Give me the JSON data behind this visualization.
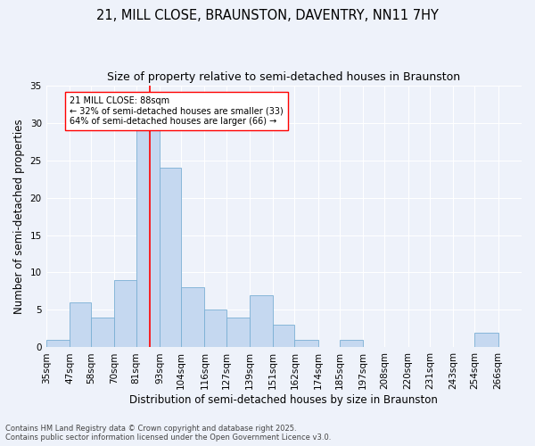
{
  "title1": "21, MILL CLOSE, BRAUNSTON, DAVENTRY, NN11 7HY",
  "title2": "Size of property relative to semi-detached houses in Braunston",
  "xlabel": "Distribution of semi-detached houses by size in Braunston",
  "ylabel": "Number of semi-detached properties",
  "bin_labels": [
    "35sqm",
    "47sqm",
    "58sqm",
    "70sqm",
    "81sqm",
    "93sqm",
    "104sqm",
    "116sqm",
    "127sqm",
    "139sqm",
    "151sqm",
    "162sqm",
    "174sqm",
    "185sqm",
    "197sqm",
    "208sqm",
    "220sqm",
    "231sqm",
    "243sqm",
    "254sqm",
    "266sqm"
  ],
  "bar_heights": [
    1,
    6,
    4,
    9,
    29,
    24,
    8,
    5,
    4,
    7,
    3,
    1,
    0,
    1,
    0,
    0,
    0,
    0,
    0,
    2,
    0
  ],
  "bar_color": "#c5d8f0",
  "bar_edge_color": "#7aafd4",
  "ylim": [
    0,
    35
  ],
  "yticks": [
    0,
    5,
    10,
    15,
    20,
    25,
    30,
    35
  ],
  "property_size": 88,
  "property_label": "21 MILL CLOSE: 88sqm",
  "pct_smaller": 32,
  "n_smaller": 33,
  "pct_larger": 64,
  "n_larger": 66,
  "red_line_x": 88,
  "footer1": "Contains HM Land Registry data © Crown copyright and database right 2025.",
  "footer2": "Contains public sector information licensed under the Open Government Licence v3.0.",
  "bg_color": "#eef2fa",
  "grid_color": "#ffffff",
  "title1_fontsize": 10.5,
  "title2_fontsize": 9,
  "axis_fontsize": 8.5,
  "tick_fontsize": 7.5,
  "footer_fontsize": 6
}
